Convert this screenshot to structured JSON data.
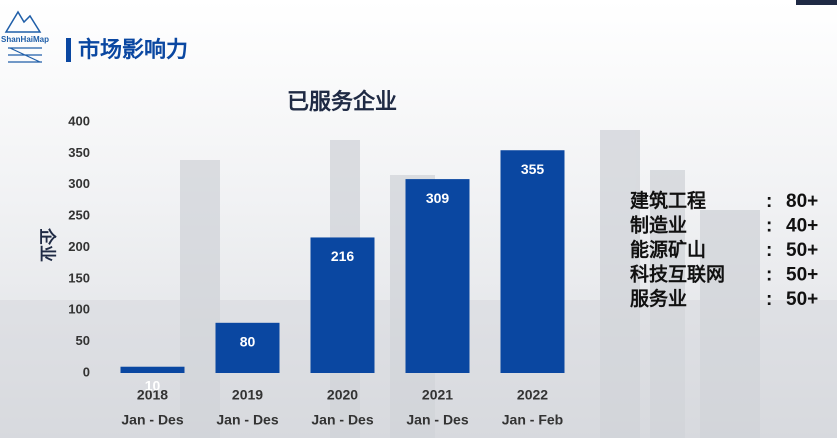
{
  "header": {
    "logo": "ShanHaiMap",
    "title": "市场影响力"
  },
  "chart_data": {
    "type": "bar",
    "title": "已服务企业",
    "y_label": "企业",
    "categories": [
      "2018",
      "2019",
      "2020",
      "2021",
      "2022"
    ],
    "category_sublabels": [
      "Jan - Des",
      "Jan - Des",
      "Jan - Des",
      "Jan - Des",
      "Jan - Feb"
    ],
    "values": [
      10,
      80,
      216,
      309,
      355
    ],
    "color": "#0a47a1",
    "ylim": [
      0,
      400
    ],
    "yticks": [
      0,
      50,
      100,
      150,
      200,
      250,
      300,
      350,
      400
    ],
    "grid": false
  },
  "industries": {
    "separator": ":",
    "items": [
      {
        "name": "建筑工程",
        "value": "80+"
      },
      {
        "name": "制造业",
        "value": "40+"
      },
      {
        "name": "能源矿山",
        "value": "50+"
      },
      {
        "name": "科技互联网",
        "value": "50+"
      },
      {
        "name": "服务业",
        "value": "50+"
      }
    ]
  }
}
